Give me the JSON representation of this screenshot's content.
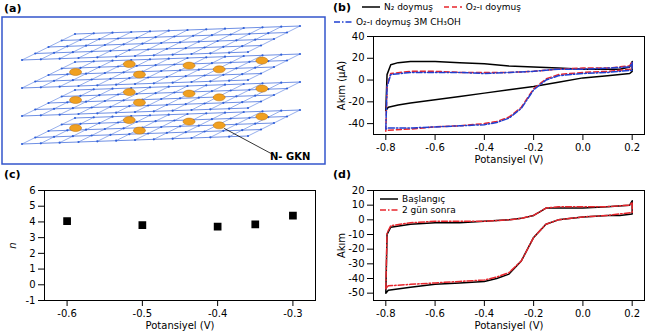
{
  "diagram": {
    "letter": "(a)",
    "label": "N- GKN"
  },
  "chart_data": [
    {
      "letter": "(b)",
      "type": "line",
      "xlabel": "Potansiyel (V)",
      "ylabel": "Akım (μA)",
      "xlim": [
        -0.85,
        0.25
      ],
      "xticks": [
        -0.8,
        -0.6,
        -0.4,
        -0.2,
        {
          "value": 0,
          "label": "0.0"
        },
        0.2
      ],
      "ylim": [
        -50,
        40
      ],
      "yticks": [
        -40,
        -20,
        0,
        20,
        40
      ],
      "legend": "top",
      "series": [
        {
          "name": "N₂ doymuş",
          "color": "#000000",
          "line_style": "solid",
          "x": [
            -0.8,
            -0.795,
            -0.78,
            -0.75,
            -0.7,
            -0.6,
            -0.5,
            -0.4,
            -0.3,
            -0.2,
            -0.1,
            0.0,
            0.1,
            0.15,
            0.19,
            0.2,
            0.2,
            0.19,
            0.15,
            0.1,
            0.0,
            -0.1,
            -0.2,
            -0.3,
            -0.4,
            -0.5,
            -0.6,
            -0.7,
            -0.75,
            -0.79,
            -0.8
          ],
          "values": [
            -28,
            5,
            14,
            16,
            17,
            17,
            16,
            15,
            13,
            12,
            11,
            10,
            10,
            10,
            12,
            17,
            8,
            6,
            5,
            4,
            2,
            -2,
            -6,
            -9,
            -12,
            -15,
            -18,
            -21,
            -23,
            -25,
            -28
          ]
        },
        {
          "name": "O₂-ı doymuş",
          "color": "#e8262d",
          "line_style": "dashed",
          "x": [
            -0.8,
            -0.795,
            -0.78,
            -0.7,
            -0.6,
            -0.5,
            -0.4,
            -0.3,
            -0.2,
            -0.15,
            -0.1,
            0.0,
            0.1,
            0.19,
            0.2,
            0.2,
            0.15,
            0.1,
            0.0,
            -0.1,
            -0.15,
            -0.2,
            -0.25,
            -0.3,
            -0.35,
            -0.4,
            -0.5,
            -0.6,
            -0.7,
            -0.79,
            -0.8
          ],
          "values": [
            -47,
            -5,
            6,
            8,
            8,
            7,
            7,
            7,
            8,
            9,
            10,
            11,
            11,
            13,
            17,
            10,
            9,
            8,
            7,
            5,
            1,
            -8,
            -25,
            -34,
            -38,
            -40,
            -42,
            -43,
            -45,
            -46,
            -47
          ]
        },
        {
          "name": "O₂-ı doymuş 3M CH₃OH",
          "color": "#1f3fd1",
          "line_style": "dashdot",
          "x": [
            -0.8,
            -0.795,
            -0.78,
            -0.7,
            -0.6,
            -0.5,
            -0.4,
            -0.3,
            -0.2,
            -0.15,
            -0.1,
            0.0,
            0.1,
            0.19,
            0.2,
            0.2,
            0.15,
            0.1,
            0.0,
            -0.1,
            -0.15,
            -0.2,
            -0.25,
            -0.3,
            -0.35,
            -0.4,
            -0.5,
            -0.6,
            -0.7,
            -0.79,
            -0.8
          ],
          "values": [
            -45,
            -6,
            5,
            7,
            7,
            7,
            6,
            7,
            8,
            9,
            10,
            10,
            11,
            12,
            16,
            9,
            8,
            7,
            6,
            4,
            0,
            -9,
            -26,
            -35,
            -39,
            -41,
            -42,
            -43,
            -44,
            -44,
            -45
          ]
        }
      ]
    },
    {
      "letter": "(c)",
      "type": "scatter",
      "xlabel": "Potansiyel (V)",
      "ylabel": "n",
      "xlim": [
        -0.63,
        -0.27
      ],
      "xticks": [
        -0.6,
        -0.5,
        -0.4,
        -0.3
      ],
      "ylim": [
        -1,
        6
      ],
      "yticks": [
        -1,
        0,
        1,
        2,
        3,
        4,
        5,
        6
      ],
      "marker": "square",
      "color": "#000000",
      "x": [
        -0.6,
        -0.5,
        -0.4,
        -0.35,
        -0.3
      ],
      "values": [
        4.05,
        3.8,
        3.7,
        3.85,
        4.4
      ]
    },
    {
      "letter": "(d)",
      "type": "line",
      "xlabel": "Potansiyel (V)",
      "ylabel": "Akım",
      "xlim": [
        -0.85,
        0.25
      ],
      "xticks": [
        -0.8,
        -0.6,
        -0.4,
        -0.2,
        {
          "value": 0,
          "label": "0.0"
        },
        0.2
      ],
      "ylim": [
        -55,
        20
      ],
      "yticks": [
        -50,
        -40,
        -30,
        -20,
        -10,
        0,
        10,
        20
      ],
      "legend": "upper left",
      "series": [
        {
          "name": "Başlangıç",
          "color": "#000000",
          "line_style": "solid",
          "x": [
            -0.8,
            -0.795,
            -0.78,
            -0.7,
            -0.6,
            -0.5,
            -0.4,
            -0.3,
            -0.25,
            -0.2,
            -0.17,
            -0.15,
            -0.1,
            0.0,
            0.1,
            0.19,
            0.2,
            0.2,
            0.15,
            0.1,
            0.0,
            -0.1,
            -0.15,
            -0.2,
            -0.25,
            -0.3,
            -0.35,
            -0.4,
            -0.5,
            -0.6,
            -0.7,
            -0.79,
            -0.8
          ],
          "values": [
            -50,
            -10,
            -5,
            -3,
            -2,
            -2,
            -1,
            0,
            1,
            3,
            6,
            8,
            8,
            8,
            9,
            10,
            13,
            4,
            3,
            3,
            2,
            0,
            -3,
            -12,
            -28,
            -37,
            -40,
            -42,
            -43,
            -44,
            -46,
            -48,
            -50
          ]
        },
        {
          "name": "2 gün sonra",
          "color": "#e8262d",
          "line_style": "dashdot",
          "x": [
            -0.8,
            -0.795,
            -0.78,
            -0.7,
            -0.6,
            -0.5,
            -0.4,
            -0.3,
            -0.25,
            -0.2,
            -0.17,
            -0.15,
            -0.1,
            0.0,
            0.1,
            0.19,
            0.2,
            0.2,
            0.15,
            0.1,
            0.0,
            -0.1,
            -0.15,
            -0.2,
            -0.25,
            -0.3,
            -0.35,
            -0.4,
            -0.5,
            -0.6,
            -0.7,
            -0.79,
            -0.8
          ],
          "values": [
            -47,
            -9,
            -4,
            -2,
            -1,
            -1,
            -1,
            0,
            1,
            3,
            6,
            8,
            9,
            9,
            9,
            10,
            12,
            5,
            4,
            3,
            2,
            0,
            -3,
            -12,
            -28,
            -36,
            -39,
            -41,
            -42,
            -43,
            -44,
            -45,
            -47
          ]
        }
      ]
    }
  ]
}
